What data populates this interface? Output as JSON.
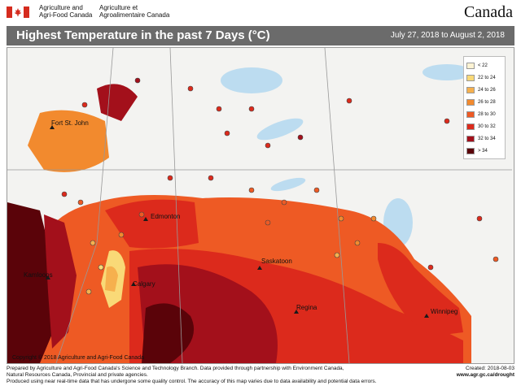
{
  "header": {
    "dept_en_line1": "Agriculture and",
    "dept_en_line2": "Agri-Food Canada",
    "dept_fr_line1": "Agriculture et",
    "dept_fr_line2": "Agroalimentaire Canada",
    "wordmark": "Canada"
  },
  "title": "Highest Temperature in the past 7 Days (°C)",
  "date_range": "July 27, 2018 to August 2, 2018",
  "legend": [
    {
      "label": "< 22",
      "color": "#fdf3d3"
    },
    {
      "label": "22 to 24",
      "color": "#f9d977"
    },
    {
      "label": "24 to 26",
      "color": "#f6b04e"
    },
    {
      "label": "26 to 28",
      "color": "#f28a2e"
    },
    {
      "label": "28 to 30",
      "color": "#ee5a24"
    },
    {
      "label": "30 to 32",
      "color": "#dc2a1c"
    },
    {
      "label": "32 to 34",
      "color": "#a3101b"
    },
    {
      "label": "> 34",
      "color": "#5a0309"
    }
  ],
  "cities": {
    "fort_st_john": "Fort St. John",
    "edmonton": "Edmonton",
    "kamloops": "Kamloops",
    "calgary": "Calgary",
    "saskatoon": "Saskatoon",
    "regina": "Regina",
    "winnipeg": "Winnipeg"
  },
  "copyright": "Copyright © 2018 Agriculture and Agri-Food Canada",
  "footer": {
    "line1": "Prepared by Agriculture and Agri-Food Canada's Science and Technology Branch. Data provided through partnership with Environment Canada,",
    "line2": "Natural Resources Canada, Provincial and private agencies.",
    "line3": "Produced using near real-time data that has undergone some quality control. The accuracy of this map varies due to data availability and potential data errors.",
    "created": "Created: 2018-08-03",
    "url": "www.agr.gc.ca/drought"
  }
}
